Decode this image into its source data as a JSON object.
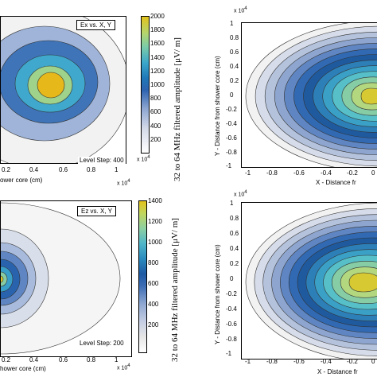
{
  "chart_data": [
    {
      "type": "heatmap",
      "panel": "top-left",
      "legend_text": "Ex vs. X, Y",
      "level_step_text": "Level Step: 400",
      "xlabel_partial": "ower core (cm)",
      "x_ticks": [
        "0.2",
        "0.4",
        "0.6",
        "0.8",
        "1"
      ],
      "x_exponent": "x 10",
      "x_exponent_power": "4",
      "colorbar": {
        "ticks": [
          "2000",
          "1800",
          "1600",
          "1400",
          "1200",
          "1000",
          "800",
          "600",
          "400",
          "200"
        ],
        "exponent": "x 10",
        "exponent_power": "4",
        "label": "32 to 64 MHz filtered amplitude [μV/ m]",
        "max": 2000
      },
      "levels": 5
    },
    {
      "type": "heatmap",
      "panel": "top-right",
      "ylabel": "Y - Distance from shower core (cm)",
      "xlabel_partial": "X - Distance fr",
      "x_ticks": [
        "-1",
        "-0.8",
        "-0.6",
        "-0.4",
        "-0.2",
        "0"
      ],
      "y_ticks": [
        "1",
        "0.8",
        "0.6",
        "0.4",
        "0.2",
        "0",
        "-0.2",
        "-0.4",
        "-0.6",
        "-0.8",
        "-1"
      ],
      "y_exponent": "x 10",
      "y_exponent_power": "4",
      "levels": 12
    },
    {
      "type": "heatmap",
      "panel": "bottom-left",
      "legend_text": "Ez vs. X, Y",
      "level_step_text": "Level Step: 200",
      "xlabel_partial": "hower core (cm)",
      "x_ticks": [
        "0.2",
        "0.4",
        "0.6",
        "0.8",
        "1"
      ],
      "x_exponent": "x 10",
      "x_exponent_power": "4",
      "colorbar": {
        "ticks": [
          "1400",
          "1200",
          "1000",
          "800",
          "600",
          "400",
          "200"
        ],
        "label": "32 to 64 MHz filtered amplitude [μV/ m]",
        "max": 1400
      },
      "levels": 7
    },
    {
      "type": "heatmap",
      "panel": "bottom-right",
      "ylabel": "Y - Distance from shower core (cm)",
      "xlabel_partial": "X - Distance fr",
      "x_ticks": [
        "-1",
        "-0.8",
        "-0.6",
        "-0.4",
        "-0.2",
        "0"
      ],
      "y_ticks": [
        "1",
        "0.8",
        "0.6",
        "0.4",
        "0.2",
        "0",
        "-0.2",
        "-0.4",
        "-0.6",
        "-0.8",
        "-1"
      ],
      "y_exponent": "x 10",
      "y_exponent_power": "4",
      "levels": 12
    }
  ],
  "colors": {
    "ramp": [
      "#f2f2f2",
      "#d6dce9",
      "#b4c2dc",
      "#8ea6cf",
      "#5f86c2",
      "#3169b2",
      "#1f5a9f",
      "#2d7fb8",
      "#3ba0c6",
      "#56bfc7",
      "#86cda6",
      "#b2d77f",
      "#d6c932",
      "#e5b21a"
    ]
  }
}
